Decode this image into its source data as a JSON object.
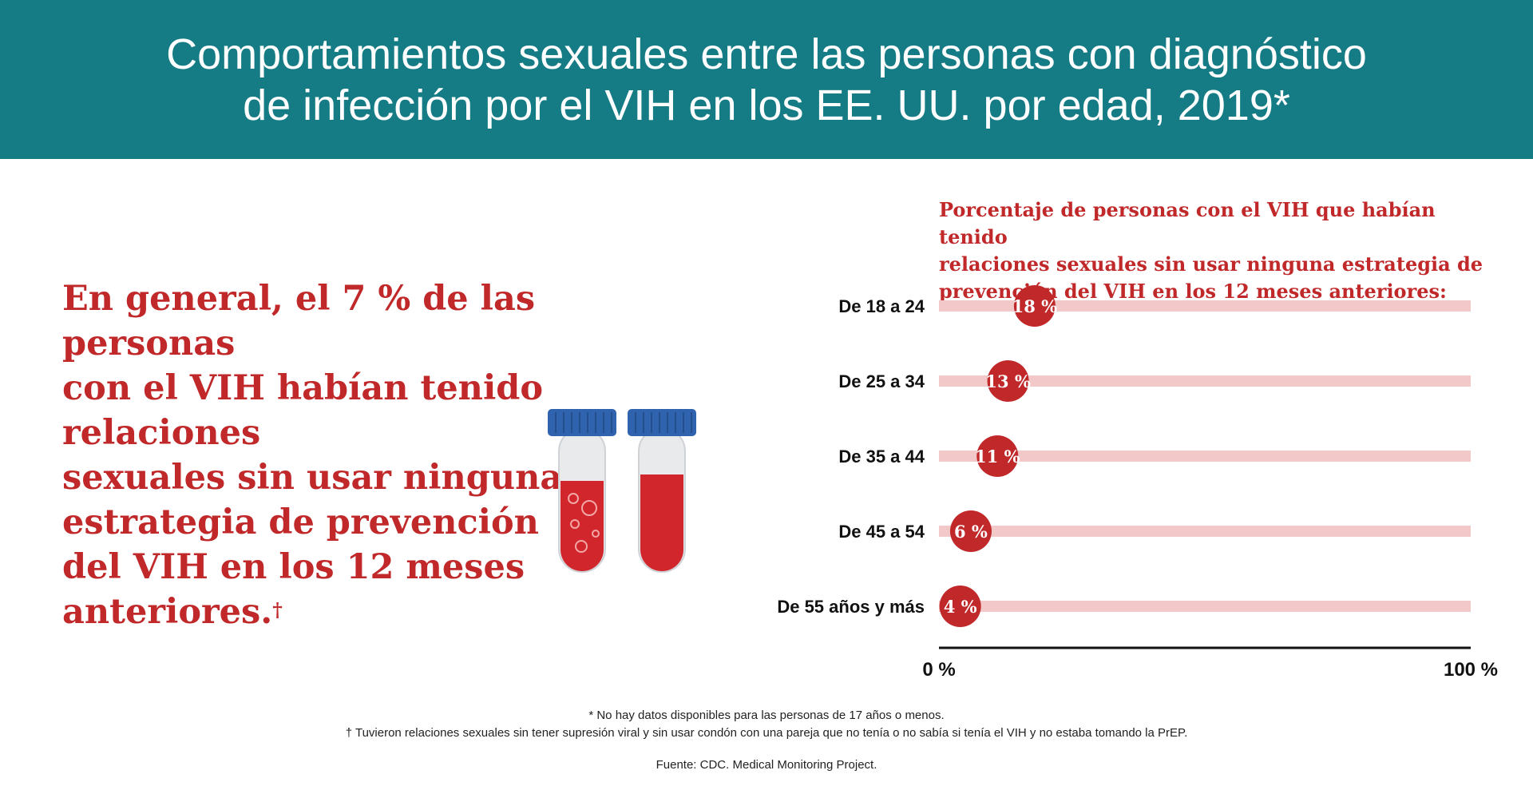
{
  "header": {
    "title_line1": "Comportamientos sexuales entre las personas con diagnóstico",
    "title_line2": "de infección por el VIH en los EE. UU. por edad, 2019*"
  },
  "headline": {
    "line1": "En general, el 7 % de las personas",
    "line2": "con el VIH habían tenido relaciones",
    "line3": "sexuales sin usar ninguna",
    "line4": "estrategia de prevención",
    "line5": "del VIH en los 12 meses",
    "line6": "anteriores.",
    "marker": "†"
  },
  "illustration": {
    "icon": "blood-test-tubes-icon"
  },
  "chart_data": {
    "type": "dot-bar",
    "title": "Porcentaje de personas con el VIH que habían tenido relaciones sexuales sin usar ninguna estrategia de prevención del VIH en los 12 meses anteriores:",
    "title_lines": [
      "Porcentaje de personas con el VIH que habían tenido",
      "relaciones sexuales sin usar ninguna estrategia de",
      "prevención del VIH en los 12 meses anteriores:"
    ],
    "categories": [
      "De 18 a 24",
      "De 25 a 34",
      "De 35 a 44",
      "De 45 a 54",
      "De 55 años y más"
    ],
    "values": [
      18,
      13,
      11,
      6,
      4
    ],
    "value_labels": [
      "18 %",
      "13 %",
      "11 %",
      "6 %",
      "4 %"
    ],
    "xlim": [
      0,
      100
    ],
    "x_tick_labels": [
      "0 %",
      "100 %"
    ],
    "colors": {
      "dot": "#c0282a",
      "track": "#f2c9c8",
      "axis": "#111111",
      "label": "#111111"
    }
  },
  "footnotes": {
    "note1": "* No hay datos disponibles para las personas de 17 años o menos.",
    "note2": "† Tuvieron relaciones sexuales sin tener supresión viral y sin usar condón con una pareja que no tenía o no sabía si tenía el VIH y no estaba tomando la PrEP.",
    "source": "Fuente: CDC. Medical Monitoring Project."
  }
}
